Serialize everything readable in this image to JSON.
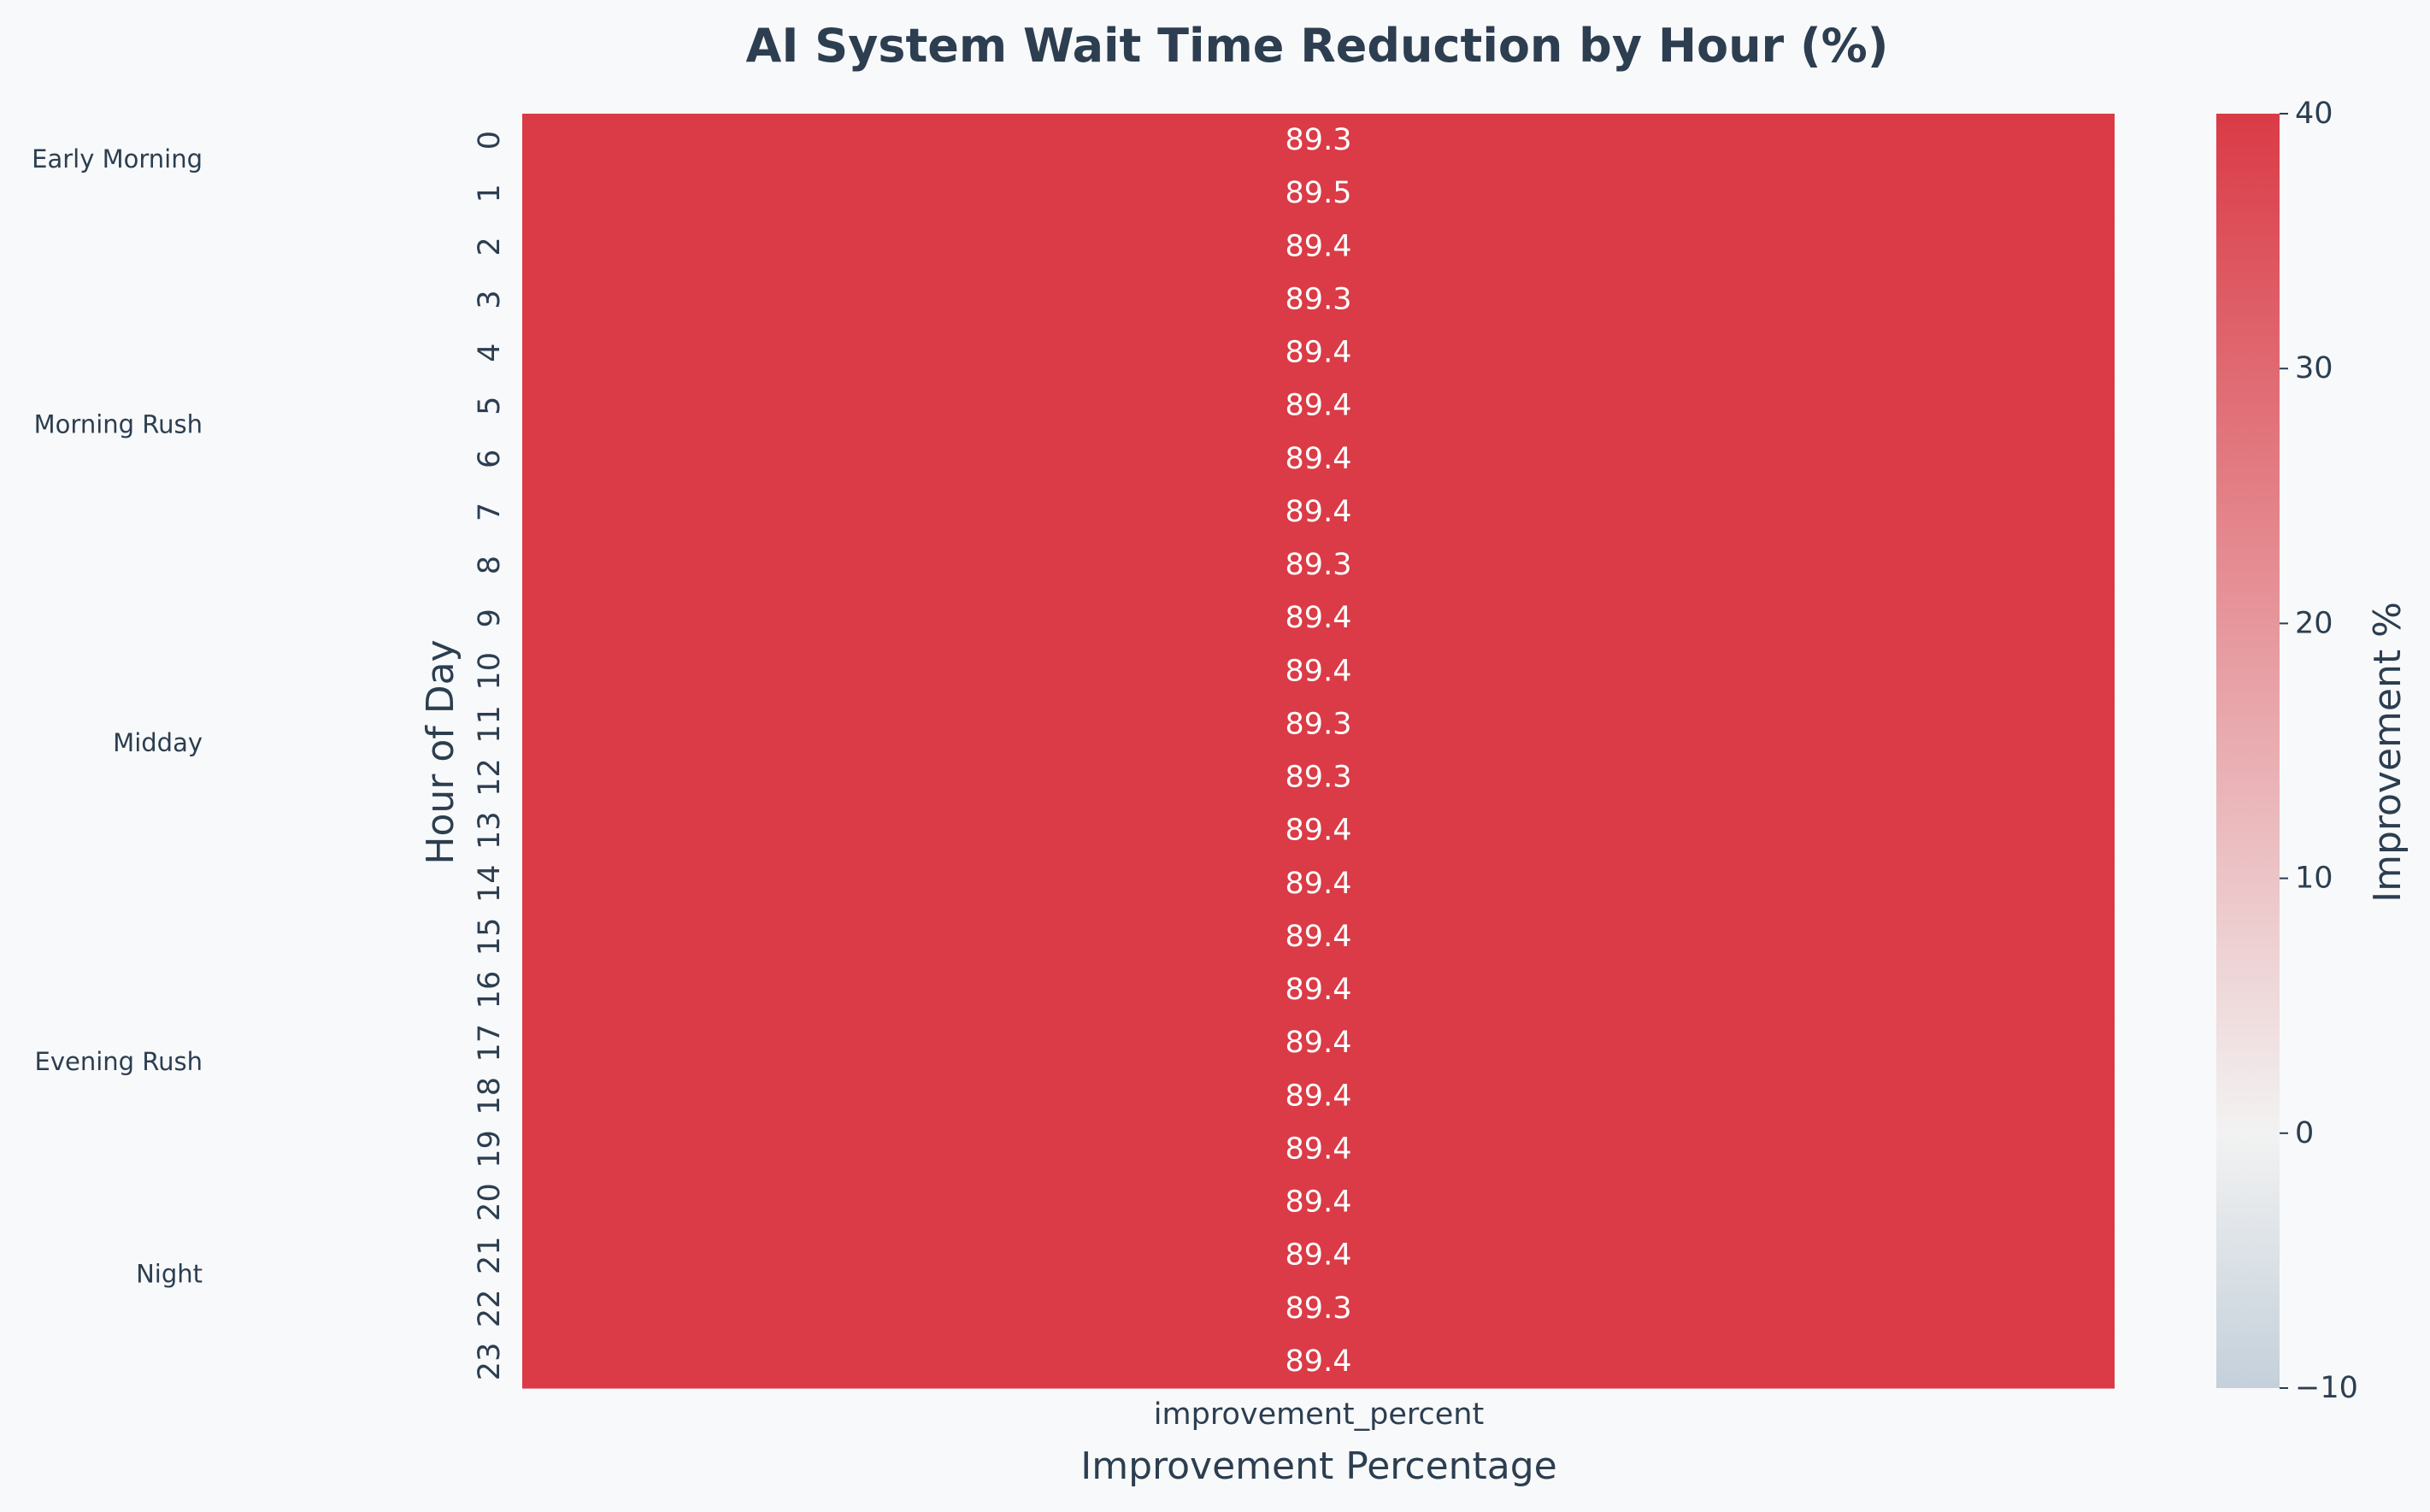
{
  "chart_data": {
    "type": "heatmap",
    "title": "AI System Wait Time Reduction by Hour (%)",
    "xlabel": "Improvement Percentage",
    "ylabel": "Hour of Day",
    "columns": [
      "improvement_percent"
    ],
    "rows": [
      "0",
      "1",
      "2",
      "3",
      "4",
      "5",
      "6",
      "7",
      "8",
      "9",
      "10",
      "11",
      "12",
      "13",
      "14",
      "15",
      "16",
      "17",
      "18",
      "19",
      "20",
      "21",
      "22",
      "23"
    ],
    "values": [
      89.3,
      89.5,
      89.4,
      89.3,
      89.4,
      89.4,
      89.4,
      89.4,
      89.3,
      89.4,
      89.4,
      89.3,
      89.3,
      89.4,
      89.4,
      89.4,
      89.4,
      89.4,
      89.4,
      89.4,
      89.4,
      89.4,
      89.3,
      89.4
    ],
    "value_format": "0.1f",
    "colorbar": {
      "label": "Improvement %",
      "range": [
        -10,
        40
      ],
      "ticks": [
        -10,
        0,
        10,
        20,
        30,
        40
      ],
      "tick_labels": [
        "−10",
        "0",
        "10",
        "20",
        "30",
        "40"
      ],
      "colors": {
        "low": "#c4d0da",
        "mid": "#f2f2f2",
        "high": "#da3b46"
      }
    },
    "row_groups": [
      {
        "label": "Early Morning",
        "row": 0.85
      },
      {
        "label": "Morning Rush",
        "row": 5.85
      },
      {
        "label": "Midday",
        "row": 11.85
      },
      {
        "label": "Evening Rush",
        "row": 17.85
      },
      {
        "label": "Night",
        "row": 21.85
      }
    ],
    "grid": false,
    "colors": {
      "text": "#2c3e50",
      "cell_text": "#ffffff",
      "background": "#f8f9fa"
    }
  }
}
